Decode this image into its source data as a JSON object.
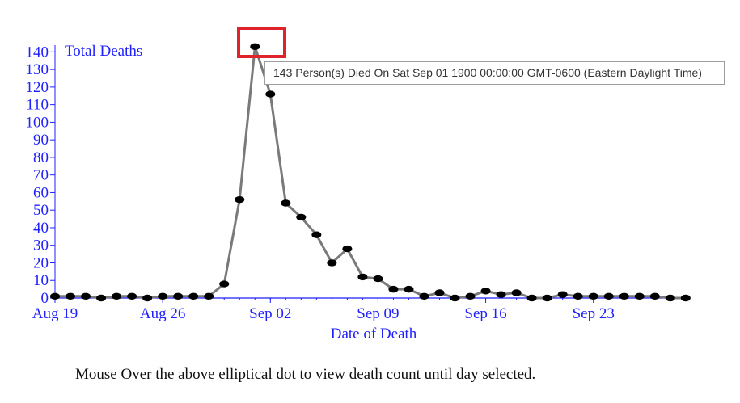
{
  "chart_data": {
    "type": "line",
    "title": "",
    "ylabel": "Total Deaths",
    "xlabel": "Date of Death",
    "y_ticks": [
      0,
      10,
      20,
      30,
      40,
      50,
      60,
      70,
      80,
      90,
      100,
      110,
      120,
      130,
      140
    ],
    "ylim": [
      0,
      143
    ],
    "x_start": "Aug 19",
    "x_tick_labels": [
      "Aug 19",
      "Aug 26",
      "Sep 02",
      "Sep 09",
      "Sep 16",
      "Sep 23"
    ],
    "x_tick_offsets_days": [
      0,
      7,
      14,
      21,
      28,
      35
    ],
    "line_color": "#7a7a7a",
    "marker_color": "#000000",
    "axis_color": "#1f1fff",
    "x": [
      "Aug 19",
      "Aug 20",
      "Aug 21",
      "Aug 22",
      "Aug 23",
      "Aug 24",
      "Aug 25",
      "Aug 26",
      "Aug 27",
      "Aug 28",
      "Aug 29",
      "Aug 30",
      "Aug 31",
      "Sep 01",
      "Sep 02",
      "Sep 03",
      "Sep 04",
      "Sep 05",
      "Sep 06",
      "Sep 07",
      "Sep 08",
      "Sep 09",
      "Sep 10",
      "Sep 11",
      "Sep 12",
      "Sep 13",
      "Sep 14",
      "Sep 15",
      "Sep 16",
      "Sep 17",
      "Sep 18",
      "Sep 19",
      "Sep 20",
      "Sep 21",
      "Sep 22",
      "Sep 23",
      "Sep 24",
      "Sep 25",
      "Sep 26",
      "Sep 27",
      "Sep 28",
      "Sep 29"
    ],
    "values": [
      1,
      1,
      1,
      0,
      1,
      1,
      0,
      1,
      1,
      1,
      1,
      8,
      56,
      143,
      116,
      54,
      46,
      36,
      20,
      28,
      12,
      11,
      5,
      5,
      1,
      3,
      0,
      1,
      4,
      2,
      3,
      0,
      0,
      2,
      1,
      1,
      1,
      1,
      1,
      1,
      0,
      0
    ]
  },
  "tooltip": {
    "text": "143 Person(s) Died On Sat Sep 01 1900 00:00:00 GMT-0600 (Eastern Daylight Time)"
  },
  "caption": "Mouse Over the above elliptical dot to view death count until day selected.",
  "highlight_color": "#e0222a"
}
